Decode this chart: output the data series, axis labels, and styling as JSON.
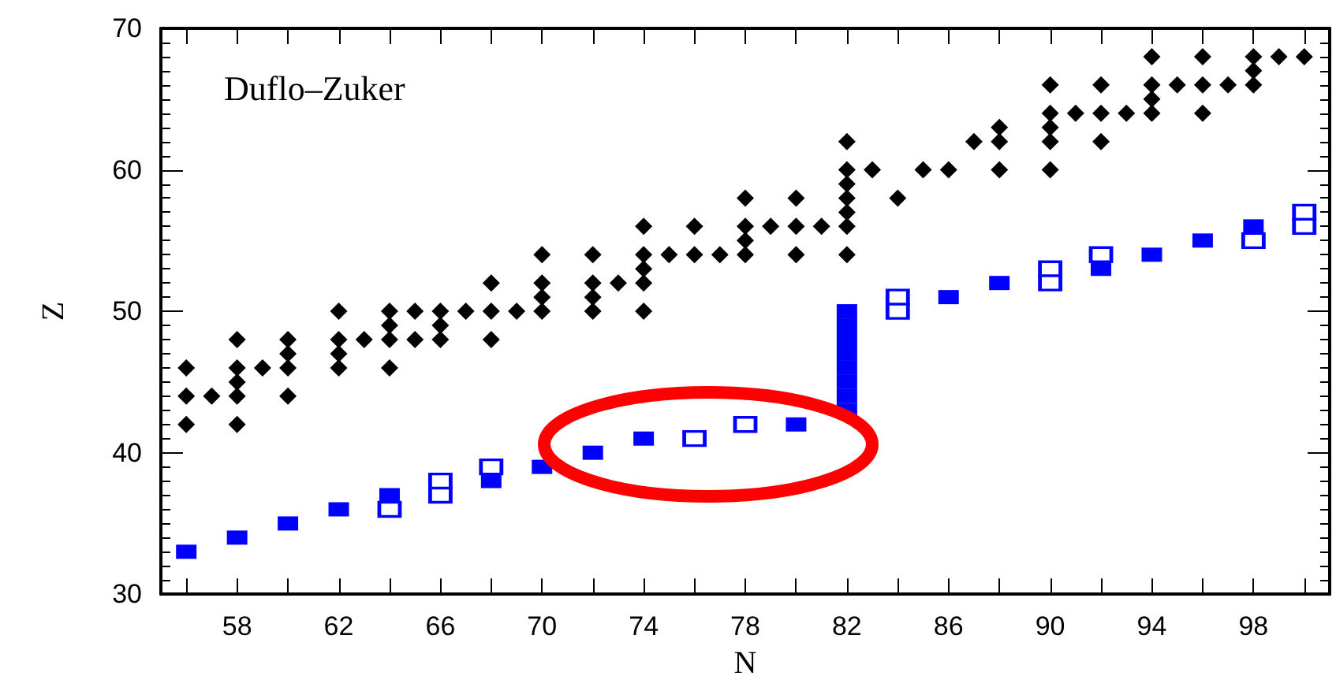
{
  "chart_data": {
    "type": "scatter",
    "xlabel": "N",
    "ylabel": "Z",
    "annotations": [
      "Duflo–Zuker"
    ],
    "xlim": [
      55,
      101
    ],
    "xticks": [
      {
        "value": 56,
        "label": null
      },
      58,
      {
        "value": 60,
        "label": null
      },
      62,
      {
        "value": 64,
        "label": null
      },
      66,
      {
        "value": 68,
        "label": null
      },
      70,
      {
        "value": 72,
        "label": null
      },
      74,
      {
        "value": 76,
        "label": null
      },
      78,
      {
        "value": 80,
        "label": null
      },
      82,
      {
        "value": 84,
        "label": null
      },
      86,
      {
        "value": 88,
        "label": null
      },
      90,
      {
        "value": 92,
        "label": null
      },
      94,
      {
        "value": 96,
        "label": null
      },
      98,
      {
        "value": 100,
        "label": null
      }
    ],
    "ylim": [
      30,
      70
    ],
    "yticks": [
      30,
      40,
      50,
      60,
      70
    ],
    "grid": false,
    "series": [
      {
        "color": "#000000",
        "marker": "diamond",
        "x": [
          56,
          56,
          56,
          57,
          58,
          58,
          58,
          58,
          58,
          59,
          60,
          60,
          60,
          60,
          62,
          62,
          62,
          62,
          63,
          64,
          64,
          64,
          64,
          65,
          65,
          66,
          66,
          66,
          67,
          68,
          68,
          68,
          69,
          70,
          70,
          70,
          70,
          72,
          72,
          72,
          72,
          73,
          74,
          74,
          74,
          74,
          74,
          75,
          76,
          76,
          77,
          78,
          78,
          78,
          78,
          79,
          80,
          80,
          80,
          81,
          82,
          82,
          82,
          82,
          82,
          82,
          82,
          83,
          84,
          85,
          86,
          87,
          88,
          88,
          88,
          90,
          90,
          90,
          90,
          90,
          91,
          92,
          92,
          92,
          93,
          94,
          94,
          94,
          94,
          95,
          96,
          96,
          96,
          97,
          98,
          98,
          98,
          99,
          100
        ],
        "values": [
          46,
          44,
          42,
          44,
          48,
          46,
          45,
          44,
          42,
          46,
          48,
          47,
          46,
          44,
          50,
          48,
          47,
          46,
          48,
          50,
          49,
          48,
          46,
          50,
          48,
          50,
          49,
          48,
          50,
          52,
          50,
          48,
          50,
          54,
          52,
          51,
          50,
          54,
          52,
          51,
          50,
          52,
          56,
          54,
          53,
          52,
          50,
          54,
          56,
          54,
          54,
          58,
          56,
          55,
          54,
          56,
          58,
          56,
          54,
          56,
          62,
          60,
          59,
          58,
          57,
          56,
          54,
          60,
          58,
          60,
          60,
          62,
          63,
          62,
          60,
          66,
          64,
          63,
          62,
          60,
          64,
          66,
          64,
          62,
          64,
          68,
          66,
          65,
          64,
          66,
          68,
          66,
          64,
          66,
          68,
          67,
          66,
          68,
          68
        ]
      },
      {
        "color": "#0000ff",
        "marker": "square",
        "x": [
          56,
          58,
          60,
          62,
          64,
          68,
          70,
          72,
          74,
          80,
          82,
          82,
          82,
          82,
          82,
          82,
          82,
          82,
          86,
          88,
          92,
          94,
          96,
          98
        ],
        "values": [
          33,
          34,
          35,
          36,
          37,
          38,
          39,
          40,
          41,
          42,
          43,
          44,
          45,
          46,
          47,
          48,
          49,
          50,
          51,
          52,
          53,
          54,
          55,
          56
        ]
      },
      {
        "color": "#0000ff",
        "marker": "square-open",
        "x": [
          64,
          66,
          66,
          68,
          76,
          78,
          84,
          84,
          90,
          90,
          92,
          98,
          100,
          100
        ],
        "values": [
          36,
          38,
          37,
          39,
          41,
          42,
          51,
          50,
          53,
          52,
          54,
          55,
          57,
          56
        ]
      }
    ]
  }
}
